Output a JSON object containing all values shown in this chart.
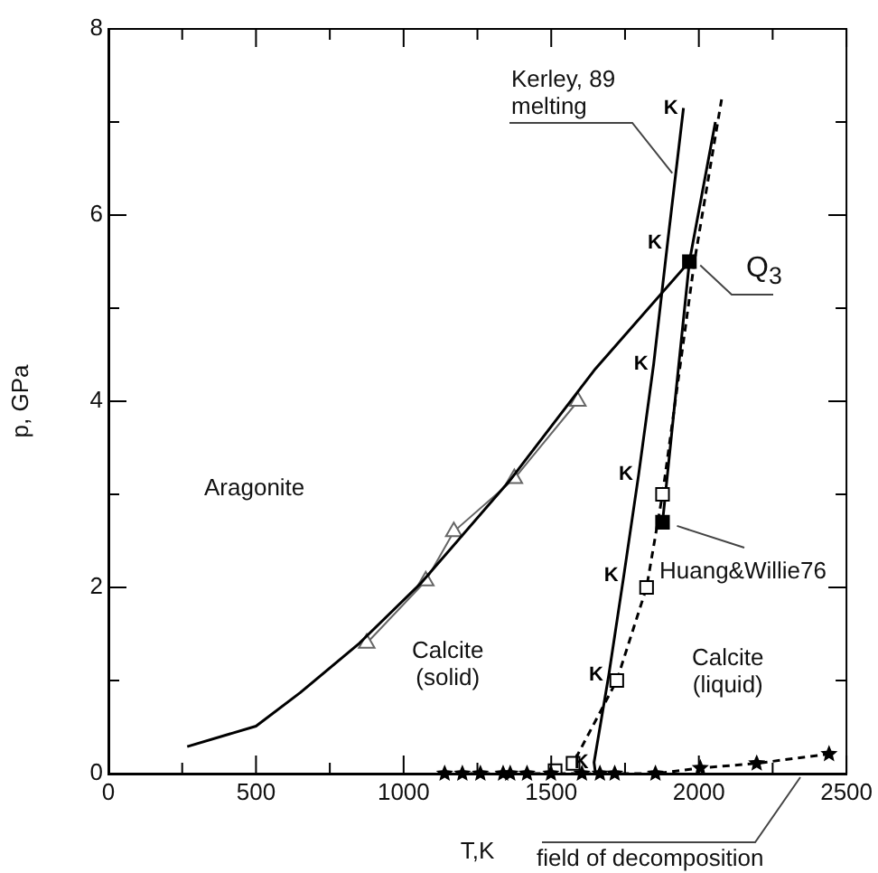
{
  "chart_data": {
    "type": "line",
    "xlabel": "T,K",
    "ylabel": "p, GPa",
    "xlim": [
      0,
      2500
    ],
    "ylim": [
      0,
      8
    ],
    "xticks": [
      0,
      {
        "value": 250,
        "label": null
      },
      500,
      {
        "value": 750,
        "label": null
      },
      1000,
      {
        "value": 1250,
        "label": null
      },
      1500,
      {
        "value": 1750,
        "label": null
      },
      2000,
      {
        "value": 2250,
        "label": null
      },
      2500
    ],
    "yticks": [
      0,
      {
        "value": 1,
        "label": null
      },
      2,
      {
        "value": 3,
        "label": null
      },
      4,
      {
        "value": 5,
        "label": null
      },
      6,
      {
        "value": 7,
        "label": null
      },
      8
    ],
    "series": [
      {
        "type": "line",
        "color": "#000000",
        "marker": "none",
        "line_style": "solid",
        "x": [
          267,
          500,
          650,
          850,
          1060,
          1360,
          1650,
          1968
        ],
        "values": [
          0.29,
          0.51,
          0.87,
          1.4,
          2.05,
          3.15,
          4.35,
          5.5
        ]
      },
      {
        "type": "line",
        "color": "#666666",
        "marker": "triangle",
        "line_style": "solid",
        "x": [
          875,
          1075,
          1170,
          1375,
          1590
        ],
        "values": [
          1.4,
          2.07,
          2.6,
          3.17,
          4.0
        ]
      },
      {
        "type": "line",
        "color": "#000000",
        "marker": "none",
        "line_style": "solid",
        "x": [
          1650,
          1645,
          1695,
          1746,
          1796,
          1847,
          1894,
          1948
        ],
        "values": [
          0,
          0.12,
          1.06,
          2.13,
          3.21,
          4.4,
          5.7,
          7.15
        ],
        "value_labels": [
          null,
          "K",
          "K",
          "K",
          "K",
          "K",
          "K",
          "K"
        ]
      },
      {
        "type": "line",
        "color": "#000000",
        "marker": "square",
        "line_style": "dashed",
        "x": [
          1513,
          1574,
          1722,
          1823,
          1877
        ],
        "values": [
          0.03,
          0.11,
          1.0,
          2.0,
          3.0
        ]
      },
      {
        "type": "line",
        "color": "#000000",
        "marker": "none",
        "line_style": "dashed",
        "x": [
          1877,
          1985,
          2080
        ],
        "values": [
          3.0,
          5.5,
          7.3
        ]
      },
      {
        "type": "line",
        "color": "#000000",
        "marker": "none",
        "line_style": "solid",
        "x": [
          1877,
          1968,
          2056
        ],
        "values": [
          2.7,
          5.5,
          7.0
        ]
      },
      {
        "type": "line",
        "color": "#000000",
        "marker": "star",
        "line_style": "dashed",
        "x": [
          1139,
          1199,
          1260,
          1337,
          1361,
          1418,
          1499,
          1604,
          1665,
          1715,
          1853,
          2005,
          2196,
          2441
        ],
        "values": [
          0,
          0,
          0,
          0,
          0,
          0,
          0,
          0,
          0,
          0,
          0,
          0.06,
          0.11,
          0.21
        ]
      },
      {
        "type": "scatter",
        "color": "#000000",
        "marker": "square",
        "x": [
          1877,
          1968
        ],
        "values": [
          2.7,
          5.5
        ]
      }
    ],
    "annotations": [
      {
        "text": "Kerley, 89\nmelting",
        "x": 1910,
        "y": 6.45
      },
      {
        "text": "Q$_{3}$",
        "x": 1968,
        "y": 5.5
      },
      {
        "text": "Huang&Willie76",
        "x": 1877,
        "y": 2.7
      },
      "Aragonite",
      "Calcite\n(solid)",
      "Calcite\n(liquid)",
      "field of decomposition"
    ]
  }
}
